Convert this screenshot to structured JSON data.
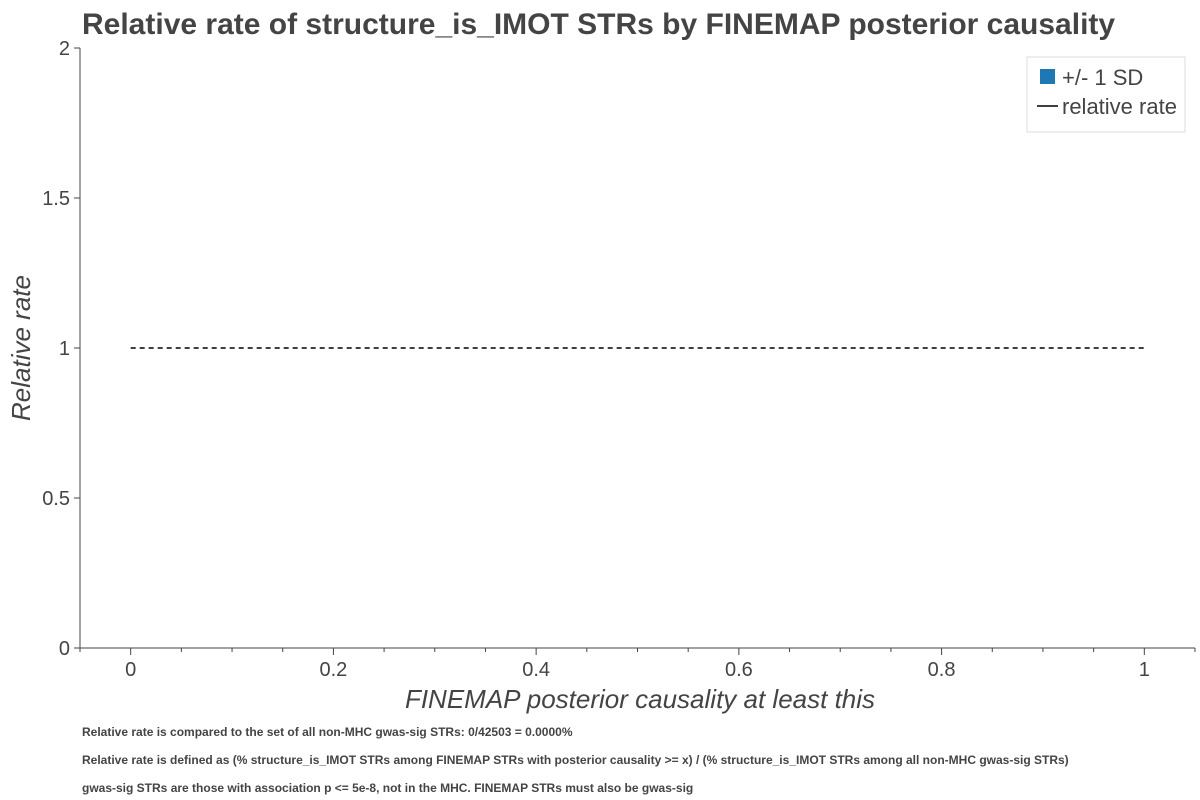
{
  "chart_data": {
    "type": "line",
    "title": "Relative rate of structure_is_IMOT STRs by FINEMAP posterior causality",
    "xlabel": "FINEMAP posterior causality at least this",
    "ylabel": "Relative rate",
    "xlim": [
      -0.05,
      1.05
    ],
    "ylim": [
      0,
      2
    ],
    "x_ticks": [
      {
        "value": 0,
        "label": "0"
      },
      {
        "value": 0.2,
        "label": "0.2"
      },
      {
        "value": 0.4,
        "label": "0.4"
      },
      {
        "value": 0.6,
        "label": "0.6"
      },
      {
        "value": 0.8,
        "label": "0.8"
      },
      {
        "value": 1,
        "label": "1"
      }
    ],
    "y_ticks": [
      {
        "value": 0,
        "label": "0"
      },
      {
        "value": 0.5,
        "label": "0.5"
      },
      {
        "value": 1,
        "label": "1"
      },
      {
        "value": 1.5,
        "label": "1.5"
      },
      {
        "value": 2,
        "label": "2"
      }
    ],
    "x_minor_step": 0.05,
    "reference_line": {
      "y": 1,
      "x": [
        0,
        1
      ],
      "style": "dashed",
      "color": "#000000"
    },
    "series": [],
    "legend": {
      "placement": "top-right",
      "entries": [
        {
          "label": "+/- 1 SD",
          "marker": "square",
          "color": "#1f77b4"
        },
        {
          "label": "relative rate",
          "marker": "line",
          "color": "#000000"
        }
      ]
    },
    "notes": [
      "Relative rate is compared to the set of all non-MHC gwas-sig STRs: 0/42503 = 0.0000%",
      "Relative rate is defined as (% structure_is_IMOT STRs among FINEMAP STRs with posterior causality >= x) / (% structure_is_IMOT STRs among all non-MHC gwas-sig STRs)",
      "gwas-sig STRs are those with association p <= 5e-8, not in the MHC. FINEMAP STRs must also be gwas-sig"
    ]
  }
}
